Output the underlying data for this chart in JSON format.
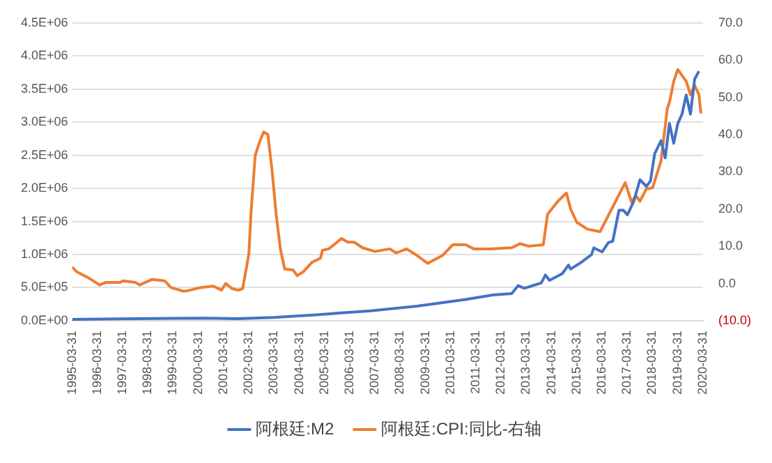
{
  "chart_data": {
    "type": "line",
    "xlim": [
      "1995-03-31",
      "2020-03-31"
    ],
    "xticks": [
      "1995-03-31",
      "1996-03-31",
      "1997-03-31",
      "1998-03-31",
      "1999-03-31",
      "2000-03-31",
      "2001-03-31",
      "2002-03-31",
      "2003-03-31",
      "2004-03-31",
      "2005-03-31",
      "2006-03-31",
      "2007-03-31",
      "2008-03-31",
      "2009-03-31",
      "2010-03-31",
      "2011-03-31",
      "2012-03-31",
      "2013-03-31",
      "2014-03-31",
      "2015-03-31",
      "2016-03-31",
      "2017-03-31",
      "2018-03-31",
      "2019-03-31",
      "2020-03-31"
    ],
    "ylim": [
      0,
      4500000
    ],
    "yticks": [
      {
        "value": 0,
        "label": "0.0E+00"
      },
      {
        "value": 500000,
        "label": "5.0E+05"
      },
      {
        "value": 1000000,
        "label": "1.0E+06"
      },
      {
        "value": 1500000,
        "label": "1.5E+06"
      },
      {
        "value": 2000000,
        "label": "2.0E+06"
      },
      {
        "value": 2500000,
        "label": "2.5E+06"
      },
      {
        "value": 3000000,
        "label": "3.0E+06"
      },
      {
        "value": 3500000,
        "label": "3.5E+06"
      },
      {
        "value": 4000000,
        "label": "4.0E+06"
      },
      {
        "value": 4500000,
        "label": "4.5E+06"
      }
    ],
    "y2lim": [
      -10,
      70
    ],
    "y2ticks": [
      {
        "value": -10,
        "label": "(10.0)"
      },
      {
        "value": 0,
        "label": "0.0"
      },
      {
        "value": 10,
        "label": "10.0"
      },
      {
        "value": 20,
        "label": "20.0"
      },
      {
        "value": 30,
        "label": "30.0"
      },
      {
        "value": 40,
        "label": "40.0"
      },
      {
        "value": 50,
        "label": "50.0"
      },
      {
        "value": 60,
        "label": "60.0"
      },
      {
        "value": 70,
        "label": "70.0"
      }
    ],
    "grid": "y",
    "legend": "bottom",
    "marker": "none",
    "line_style": "solid",
    "series": [
      {
        "name": "阿根廷:M2",
        "color": "#4472c4",
        "x": [
          "1995-03-31",
          "1997-10",
          "2000-07",
          "2001-11",
          "2003-04",
          "2004-12",
          "2006-01",
          "2007-02",
          "2008-12",
          "2010-11",
          "2011-12",
          "2012-09",
          "2012-12",
          "2013-03",
          "2013-11",
          "2014-01",
          "2014-03",
          "2014-09",
          "2014-12",
          "2015-01",
          "2015-06",
          "2015-11",
          "2015-12",
          "2016-04",
          "2016-07",
          "2016-09",
          "2016-12",
          "2017-02",
          "2017-04",
          "2017-07",
          "2017-10",
          "2018-01",
          "2018-03",
          "2018-05",
          "2018-08",
          "2018-10",
          "2018-12",
          "2019-02",
          "2019-04",
          "2019-06",
          "2019-08",
          "2019-10",
          "2019-12",
          "2020-02"
        ],
        "values": [
          20000,
          30000,
          40000,
          30000,
          50000,
          90000,
          120000,
          150000,
          220000,
          320000,
          390000,
          410000,
          530000,
          490000,
          570000,
          690000,
          610000,
          710000,
          840000,
          780000,
          880000,
          1000000,
          1100000,
          1040000,
          1180000,
          1200000,
          1670000,
          1670000,
          1600000,
          1800000,
          2130000,
          2030000,
          2110000,
          2520000,
          2720000,
          2460000,
          2980000,
          2680000,
          2980000,
          3120000,
          3410000,
          3120000,
          3650000,
          3770000
        ]
      },
      {
        "name": "阿根廷:CPI:同比-右轴",
        "color": "#ed7d31",
        "axis": "y2",
        "x": [
          "1995-03-31",
          "1995-06",
          "1995-12",
          "1996-05",
          "1996-08",
          "1997-03",
          "1997-04",
          "1997-10",
          "1997-12",
          "1998-06",
          "1998-12",
          "1999-03",
          "1999-09",
          "1999-12",
          "2000-05",
          "2000-11",
          "2001-03",
          "2001-05",
          "2001-08",
          "2001-11",
          "2002-01",
          "2002-04",
          "2002-05",
          "2002-07",
          "2002-09",
          "2002-11",
          "2003-01",
          "2003-03",
          "2003-05",
          "2003-07",
          "2003-09",
          "2004-01",
          "2004-03",
          "2004-06",
          "2004-10",
          "2005-02",
          "2005-03",
          "2005-06",
          "2005-10",
          "2005-12",
          "2006-03",
          "2006-06",
          "2006-10",
          "2007-04",
          "2007-11",
          "2008-02",
          "2008-07",
          "2008-12",
          "2009-05",
          "2009-12",
          "2010-05",
          "2010-11",
          "2011-03",
          "2011-11",
          "2012-09",
          "2013-01",
          "2013-05",
          "2013-12",
          "2014-02",
          "2014-07",
          "2014-11",
          "2015-01",
          "2015-04",
          "2015-09",
          "2016-03",
          "2017-03",
          "2017-06",
          "2017-08",
          "2017-10",
          "2018-01",
          "2018-04",
          "2018-08",
          "2018-11",
          "2018-12",
          "2019-02",
          "2019-04",
          "2019-08",
          "2019-10",
          "2019-12",
          "2020-02",
          "2020-03"
        ],
        "values": [
          4.4,
          3.2,
          1.4,
          -0.4,
          0.3,
          0.3,
          0.7,
          0.3,
          -0.4,
          1.1,
          0.7,
          -1.1,
          -2.1,
          -1.8,
          -1.1,
          -0.7,
          -1.8,
          0,
          -1.4,
          -1.8,
          -1.4,
          7.9,
          18.6,
          34.3,
          37.9,
          40.7,
          40,
          30.7,
          18.6,
          9.3,
          3.9,
          3.6,
          2.1,
          3.2,
          5.7,
          6.8,
          8.9,
          9.3,
          11.1,
          12.1,
          11.1,
          11.1,
          9.6,
          8.6,
          9.3,
          8.2,
          9.3,
          7.5,
          5.4,
          7.5,
          10.4,
          10.4,
          9.3,
          9.3,
          9.6,
          10.7,
          10,
          10.4,
          18.6,
          22.1,
          24.3,
          20,
          16.4,
          14.6,
          13.9,
          27.1,
          21.8,
          23.6,
          22.1,
          25.4,
          25.7,
          32.9,
          47.1,
          48.6,
          54.3,
          57.5,
          54.3,
          50.7,
          53.2,
          50.7,
          45.7
        ]
      }
    ]
  }
}
